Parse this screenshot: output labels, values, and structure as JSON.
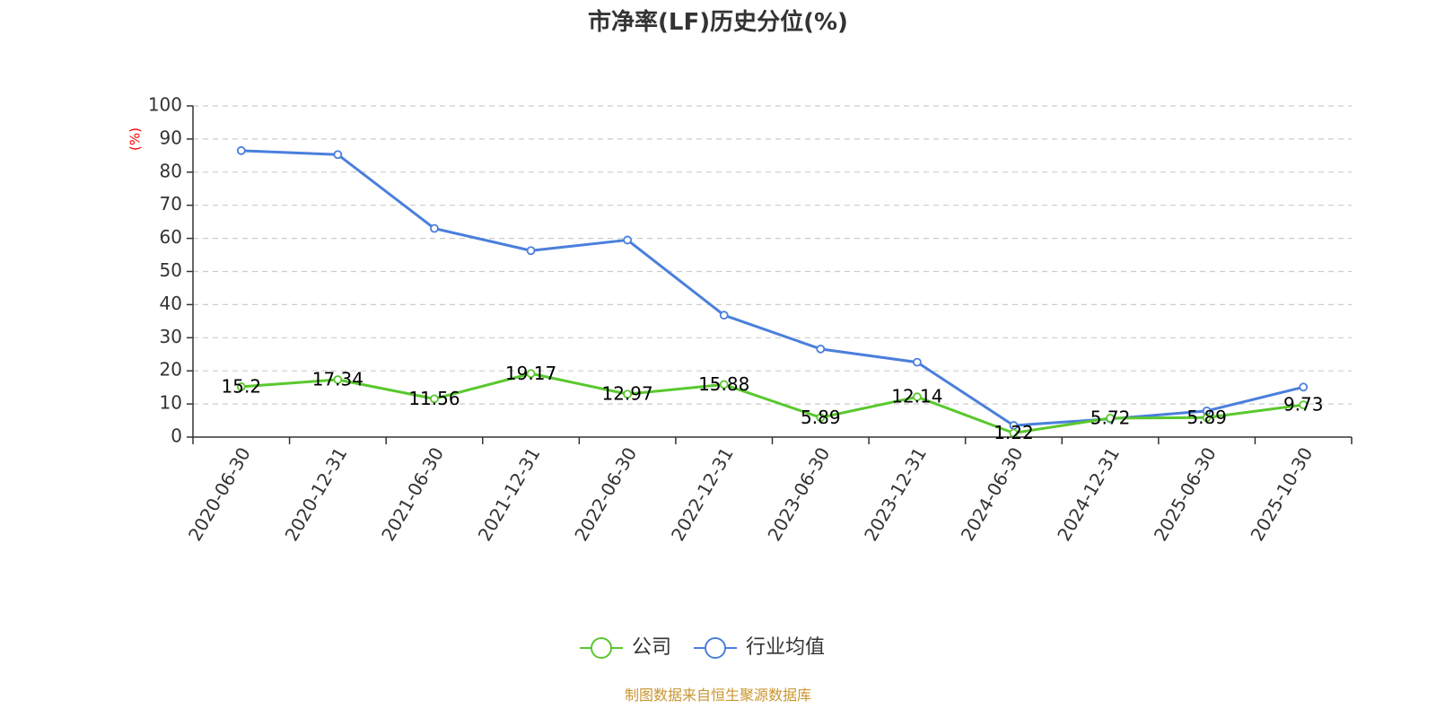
{
  "chart_data": {
    "type": "line",
    "title": "市净率(LF)历史分位(%)",
    "ylabel": "(%)",
    "xlabel": "",
    "ylim": [
      0,
      100
    ],
    "yticks": [
      0,
      10,
      20,
      30,
      40,
      50,
      60,
      70,
      80,
      90,
      100
    ],
    "grid": true,
    "legend_position": "bottom-center",
    "categories": [
      "2020-06-30",
      "2020-12-31",
      "2021-06-30",
      "2021-12-31",
      "2022-06-30",
      "2022-12-31",
      "2023-06-30",
      "2023-12-31",
      "2024-06-30",
      "2024-12-31",
      "2025-06-30",
      "2025-10-30"
    ],
    "series": [
      {
        "name": "公司",
        "color": "#5ac82e",
        "values": [
          15.2,
          17.34,
          11.56,
          19.17,
          12.97,
          15.88,
          5.89,
          12.14,
          1.22,
          5.72,
          5.89,
          9.73
        ],
        "labels": [
          "15.2",
          "17.34",
          "11.56",
          "19.17",
          "12.97",
          "15.88",
          "5.89",
          "12.14",
          "1.22",
          "5.72",
          "5.89",
          "9.73"
        ]
      },
      {
        "name": "行业均值",
        "color": "#4a7fdc",
        "values": [
          86.5,
          85.3,
          63.0,
          56.3,
          59.5,
          36.8,
          26.6,
          22.6,
          3.5,
          5.5,
          7.9,
          15.1
        ]
      }
    ],
    "source": "制图数据来自恒生聚源数据库"
  }
}
